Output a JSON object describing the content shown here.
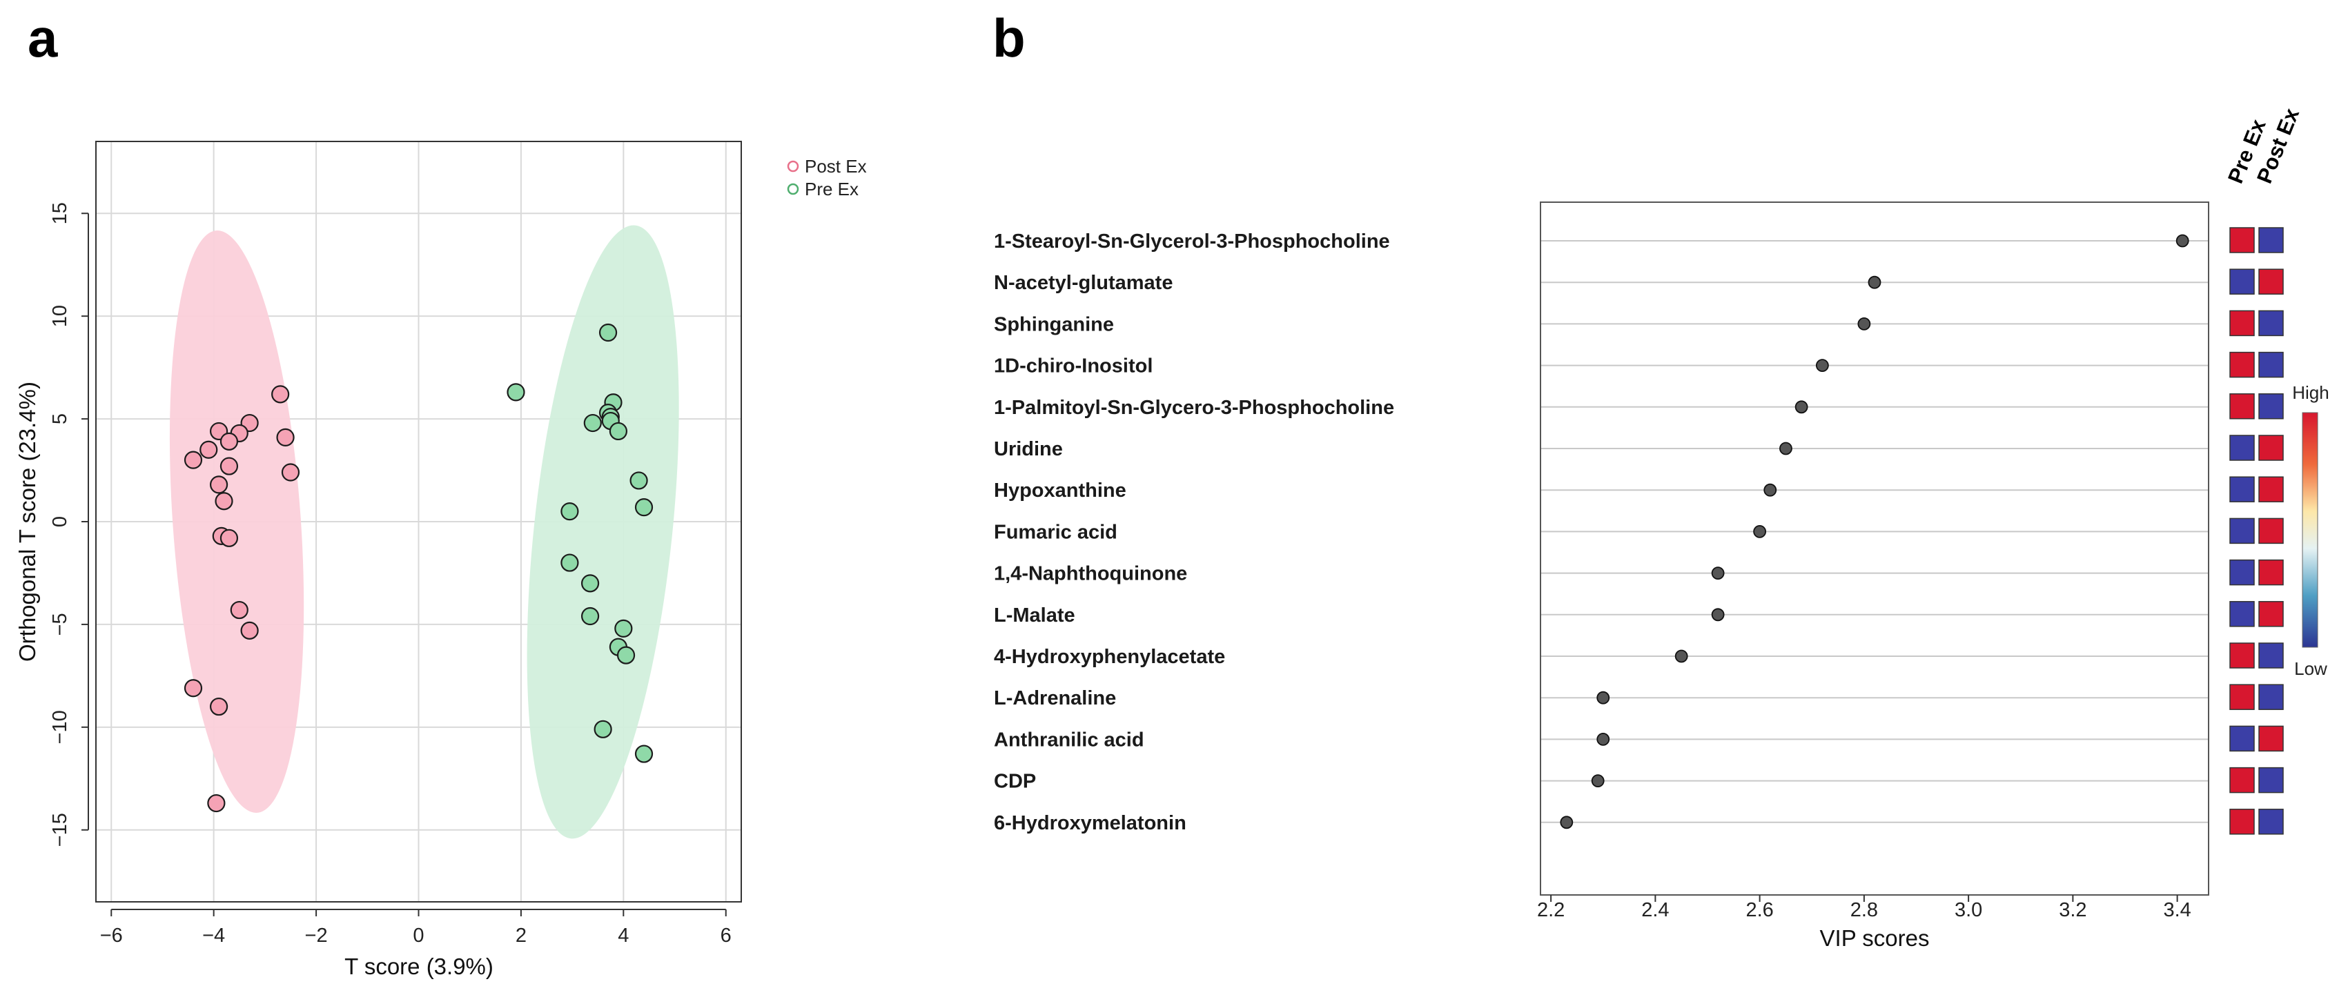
{
  "panels": {
    "a": "a",
    "b": "b"
  },
  "chart_data": [
    {
      "type": "scatter",
      "title": "",
      "xlabel": "T score (3.9%)",
      "ylabel": "Orthogonal T score (23.4%)",
      "xlim": [
        -6.3,
        6.3
      ],
      "ylim": [
        -18.5,
        18.5
      ],
      "xticks": [
        -6,
        -4,
        -2,
        0,
        2,
        4,
        6
      ],
      "xtick_labels": [
        "−6",
        "−4",
        "−2",
        "0",
        "2",
        "4",
        "6"
      ],
      "yticks": [
        -15,
        -10,
        -5,
        0,
        5,
        10,
        15
      ],
      "ytick_labels": [
        "−15",
        "−10",
        "−5",
        "0",
        "5",
        "10",
        "15"
      ],
      "grid": true,
      "legend_position": "top-right",
      "series": [
        {
          "name": "Post Ex",
          "color": "#e8708a",
          "fill": "#f5a3b5",
          "ellipse_fill": "#fbd0da",
          "ellipse": {
            "cx": -3.55,
            "cy": 0,
            "rx": 1.25,
            "ry": 14.2,
            "angle_deg": -4
          },
          "points": [
            [
              -2.7,
              6.2
            ],
            [
              -3.3,
              4.8
            ],
            [
              -3.5,
              4.3
            ],
            [
              -3.9,
              4.4
            ],
            [
              -3.7,
              3.9
            ],
            [
              -4.1,
              3.5
            ],
            [
              -4.4,
              3.0
            ],
            [
              -2.6,
              4.1
            ],
            [
              -2.5,
              2.4
            ],
            [
              -3.7,
              2.7
            ],
            [
              -3.9,
              1.8
            ],
            [
              -3.8,
              1.0
            ],
            [
              -3.85,
              -0.7
            ],
            [
              -3.7,
              -0.8
            ],
            [
              -3.5,
              -4.3
            ],
            [
              -3.3,
              -5.3
            ],
            [
              -4.4,
              -8.1
            ],
            [
              -3.9,
              -9.0
            ],
            [
              -3.95,
              -13.7
            ]
          ]
        },
        {
          "name": "Pre Ex",
          "color": "#4fae6e",
          "fill": "#8fd9a8",
          "ellipse_fill": "#d2efdc",
          "ellipse": {
            "cx": 3.6,
            "cy": -0.5,
            "rx": 1.35,
            "ry": 15.0,
            "angle_deg": 6
          },
          "points": [
            [
              3.7,
              9.2
            ],
            [
              1.9,
              6.3
            ],
            [
              3.8,
              5.8
            ],
            [
              3.7,
              5.3
            ],
            [
              3.75,
              5.1
            ],
            [
              3.75,
              4.9
            ],
            [
              3.4,
              4.8
            ],
            [
              3.9,
              4.4
            ],
            [
              4.3,
              2.0
            ],
            [
              4.4,
              0.7
            ],
            [
              2.95,
              0.5
            ],
            [
              2.95,
              -2.0
            ],
            [
              3.35,
              -3.0
            ],
            [
              3.35,
              -4.6
            ],
            [
              4.0,
              -5.2
            ],
            [
              3.9,
              -6.1
            ],
            [
              4.05,
              -6.5
            ],
            [
              3.6,
              -10.1
            ],
            [
              4.4,
              -11.3
            ]
          ]
        }
      ]
    },
    {
      "type": "dot",
      "title": "",
      "xlabel": "VIP scores",
      "ylabel": "",
      "xlim": [
        2.18,
        3.46
      ],
      "xticks": [
        2.2,
        2.4,
        2.6,
        2.8,
        3.0,
        3.2,
        3.4
      ],
      "xtick_labels": [
        "2.2",
        "2.4",
        "2.6",
        "2.8",
        "3.0",
        "3.2",
        "3.4"
      ],
      "categories": [
        "1-Stearoyl-Sn-Glycerol-3-Phosphocholine",
        "N-acetyl-glutamate",
        "Sphinganine",
        "1D-chiro-Inositol",
        "1-Palmitoyl-Sn-Glycero-3-Phosphocholine",
        "Uridine",
        "Hypoxanthine",
        "Fumaric acid",
        "1,4-Naphthoquinone",
        "L-Malate",
        "4-Hydroxyphenylacetate",
        "L-Adrenaline",
        "Anthranilic acid",
        "CDP",
        "6-Hydroxymelatonin"
      ],
      "values": [
        3.41,
        2.82,
        2.8,
        2.72,
        2.68,
        2.65,
        2.62,
        2.6,
        2.52,
        2.52,
        2.45,
        2.3,
        2.3,
        2.29,
        2.23
      ],
      "heatmap": {
        "columns": [
          "Pre Ex",
          "Post Ex"
        ],
        "cells": [
          [
            "high",
            "low"
          ],
          [
            "low",
            "high"
          ],
          [
            "high",
            "low"
          ],
          [
            "high",
            "low"
          ],
          [
            "high",
            "low"
          ],
          [
            "low",
            "high"
          ],
          [
            "low",
            "high"
          ],
          [
            "low",
            "high"
          ],
          [
            "low",
            "high"
          ],
          [
            "low",
            "high"
          ],
          [
            "high",
            "low"
          ],
          [
            "high",
            "low"
          ],
          [
            "low",
            "high"
          ],
          [
            "high",
            "low"
          ],
          [
            "high",
            "low"
          ]
        ],
        "high_color": "#d7172f",
        "low_color": "#3b3fa6",
        "colorbar_high": "High",
        "colorbar_low": "Low"
      }
    }
  ]
}
